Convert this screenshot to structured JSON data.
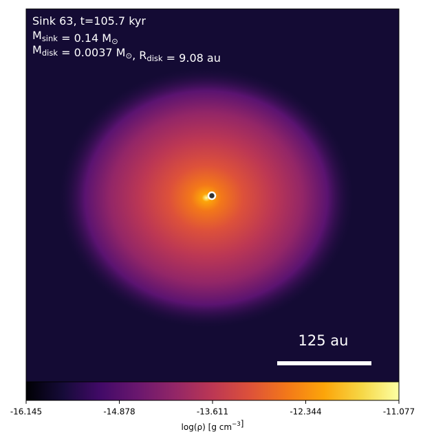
{
  "chart_data": {
    "type": "image",
    "annotations": [
      [
        {
          "text": "Sink 63, t=105.7 kyr"
        }
      ],
      [
        {
          "text": "M"
        },
        {
          "sub": "sink"
        },
        {
          "text": " = 0.14 M"
        },
        {
          "sub": "⊙"
        }
      ],
      [
        {
          "text": "M"
        },
        {
          "sub": "disk"
        },
        {
          "text": " = 0.0037 M"
        },
        {
          "sub": "⊙"
        },
        {
          "text": ", R"
        },
        {
          "sub": "disk"
        },
        {
          "text": " = 9.08 au"
        }
      ]
    ],
    "scale_bar": "125 au",
    "colorbar": {
      "lim": [
        -16.145,
        -11.077
      ],
      "ticks": [
        -16.145,
        -14.878,
        -13.611,
        -12.344,
        -11.077
      ],
      "label": [
        {
          "text": "log(ρ) [g cm"
        },
        {
          "sup": "−3"
        },
        {
          "text": "]"
        }
      ]
    }
  }
}
